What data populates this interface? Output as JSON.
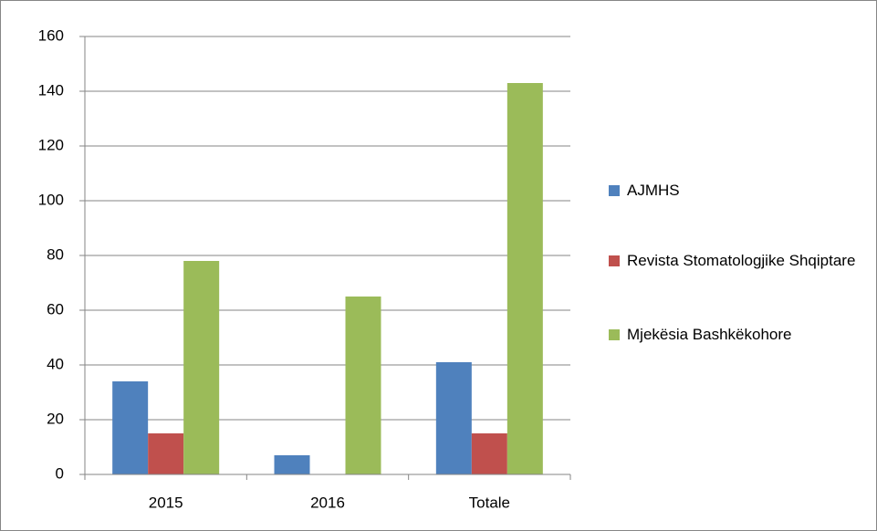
{
  "chart_data": {
    "type": "bar",
    "categories": [
      "2015",
      "2016",
      "Totale"
    ],
    "series": [
      {
        "name": "AJMHS",
        "color": "#4f81bd",
        "values": [
          34,
          7,
          41
        ]
      },
      {
        "name": "Revista Stomatologjike Shqiptare",
        "color": "#c0504d",
        "values": [
          15,
          0,
          15
        ]
      },
      {
        "name": "Mjekësia Bashkëkohore",
        "color": "#9bbb59",
        "values": [
          78,
          65,
          143
        ]
      }
    ],
    "ylim": [
      0,
      160
    ],
    "yticks": [
      0,
      20,
      40,
      60,
      80,
      100,
      120,
      140,
      160
    ],
    "grid": true,
    "legend": "right"
  }
}
